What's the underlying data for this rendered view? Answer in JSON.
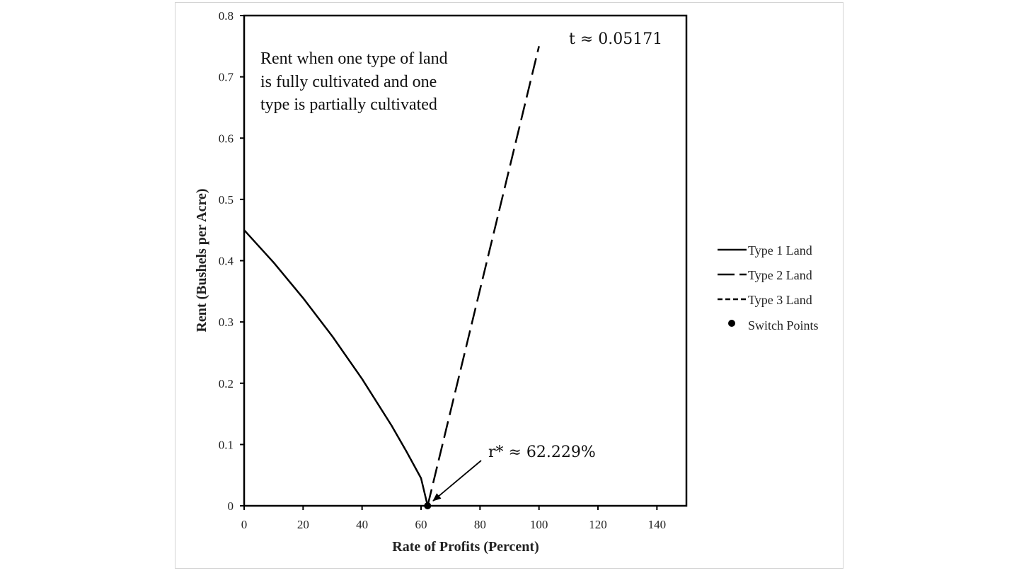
{
  "chart_data": {
    "type": "line",
    "xlabel": "Rate of Profits (Percent)",
    "ylabel": "Rent (Bushels per Acre)",
    "xlim": [
      0,
      150
    ],
    "ylim": [
      0,
      0.8
    ],
    "xticks": [
      "0",
      "20",
      "40",
      "60",
      "80",
      "100",
      "120",
      "140"
    ],
    "yticks": [
      "0",
      "0.1",
      "0.2",
      "0.3",
      "0.4",
      "0.5",
      "0.6",
      "0.7",
      "0.8"
    ],
    "grid": false,
    "legend_position": "right",
    "series": [
      {
        "name": "Type 1 Land",
        "style": "solid",
        "x": [
          0,
          10,
          20,
          30,
          40,
          50,
          55,
          60,
          62.229
        ],
        "y": [
          0.45,
          0.397,
          0.339,
          0.276,
          0.207,
          0.131,
          0.089,
          0.045,
          0.0
        ]
      },
      {
        "name": "Type 2 Land",
        "style": "long-dash",
        "x": [
          62.229,
          100
        ],
        "y": [
          0.0,
          0.75
        ]
      },
      {
        "name": "Type 3 Land",
        "style": "short-dash",
        "x": [],
        "y": []
      }
    ],
    "switch_points": {
      "name": "Switch Points",
      "x": [
        62.229
      ],
      "y": [
        0
      ]
    },
    "annotations": {
      "note_lines": [
        "Rent when one type of land",
        "is fully cultivated and one",
        "type is partially cultivated"
      ],
      "t_label": "t ≈ 0.05171",
      "r_label": "r* ≈ 62.229%"
    }
  }
}
